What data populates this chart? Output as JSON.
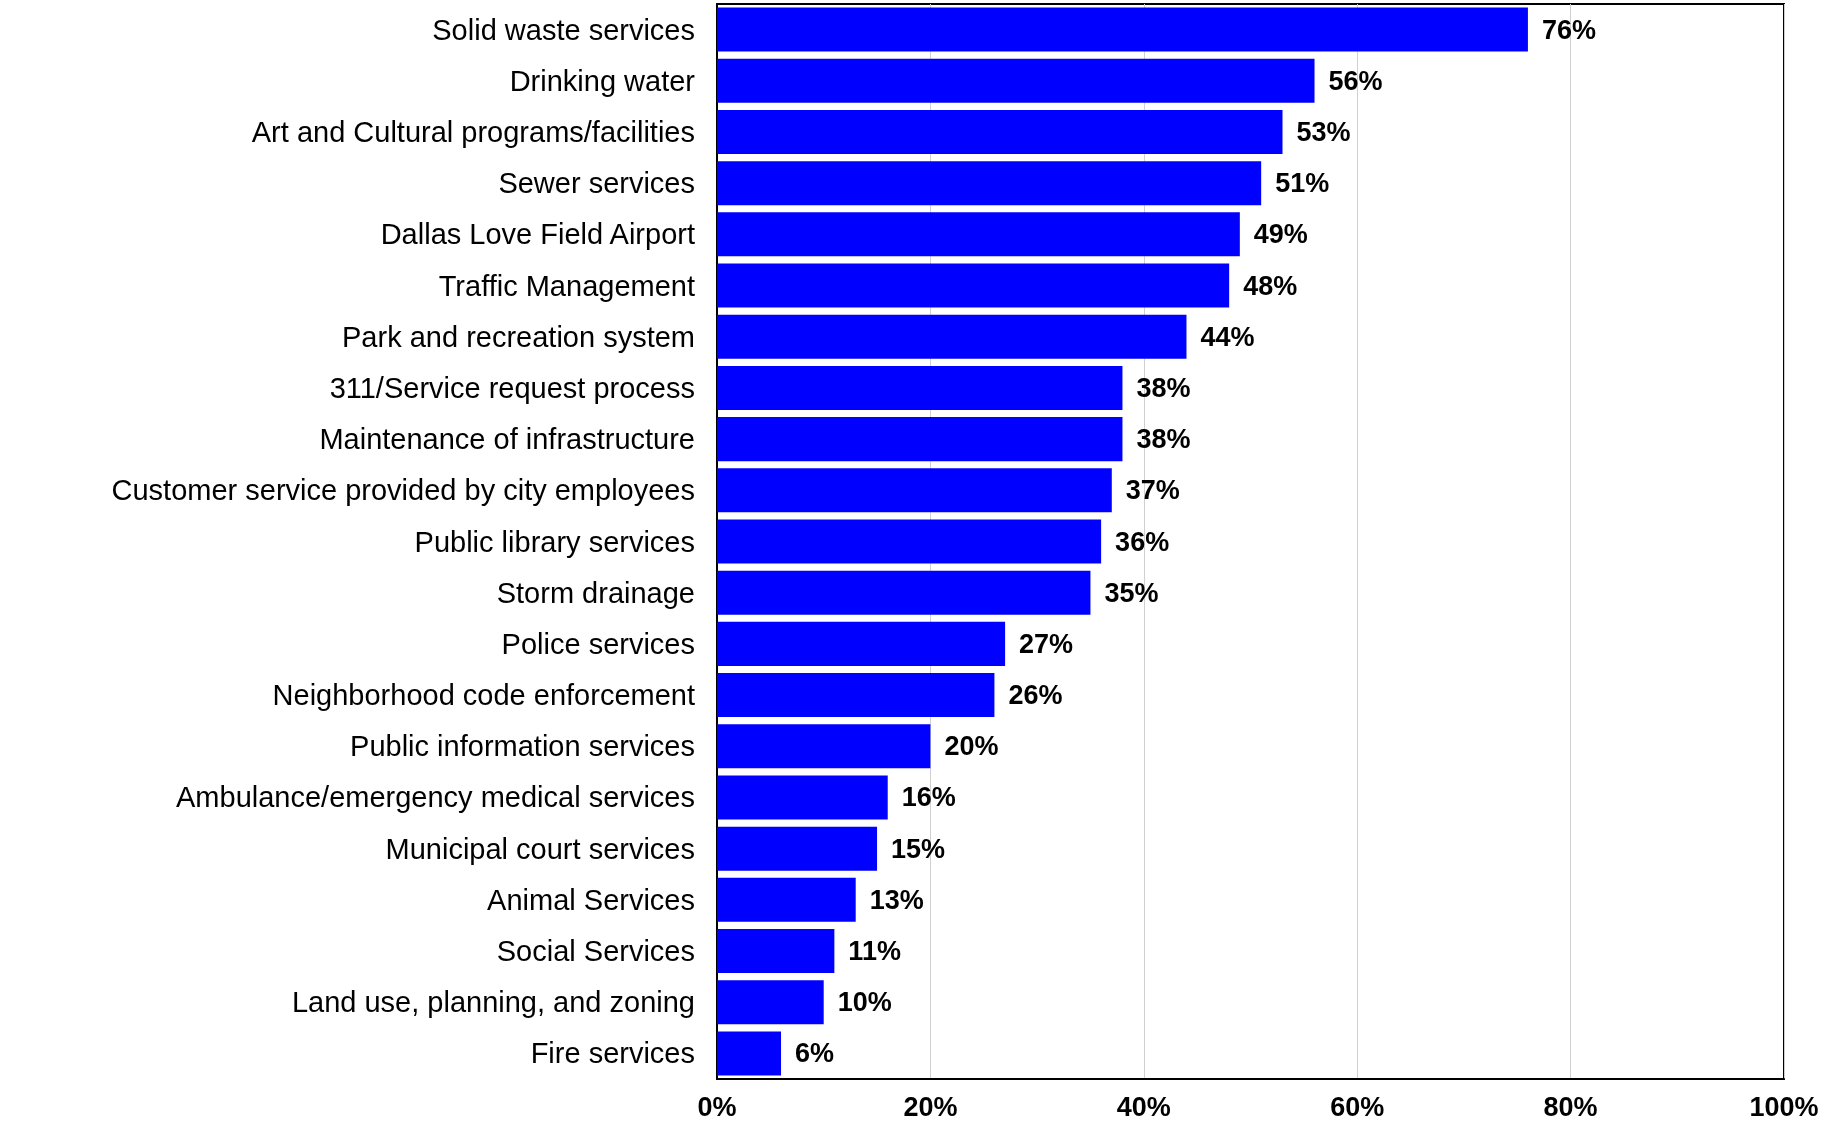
{
  "chart_data": {
    "type": "bar",
    "orientation": "horizontal",
    "categories": [
      "Solid waste services",
      "Drinking water",
      "Art and Cultural programs/facilities",
      "Sewer services",
      "Dallas Love Field Airport",
      "Traffic Management",
      "Park and recreation system",
      "311/Service request process",
      "Maintenance of infrastructure",
      "Customer service provided by city employees",
      "Public library services",
      "Storm drainage",
      "Police services",
      "Neighborhood code enforcement",
      "Public information services",
      "Ambulance/emergency medical services",
      "Municipal court services",
      "Animal Services",
      "Social Services",
      "Land use, planning, and zoning",
      "Fire services"
    ],
    "values": [
      76,
      56,
      53,
      51,
      49,
      48,
      44,
      38,
      38,
      37,
      36,
      35,
      27,
      26,
      20,
      16,
      15,
      13,
      11,
      10,
      6
    ],
    "value_labels": [
      "76%",
      "56%",
      "53%",
      "51%",
      "49%",
      "48%",
      "44%",
      "38%",
      "38%",
      "37%",
      "36%",
      "35%",
      "27%",
      "26%",
      "20%",
      "16%",
      "15%",
      "13%",
      "11%",
      "10%",
      "6%"
    ],
    "color": "#0000ff",
    "xlim": [
      0,
      100
    ],
    "xticks": [
      {
        "value": 0,
        "label": "0%"
      },
      {
        "value": 20,
        "label": "20%"
      },
      {
        "value": 40,
        "label": "40%"
      },
      {
        "value": 60,
        "label": "60%"
      },
      {
        "value": 80,
        "label": "80%"
      },
      {
        "value": 100,
        "label": "100%"
      }
    ],
    "grid": "x"
  }
}
